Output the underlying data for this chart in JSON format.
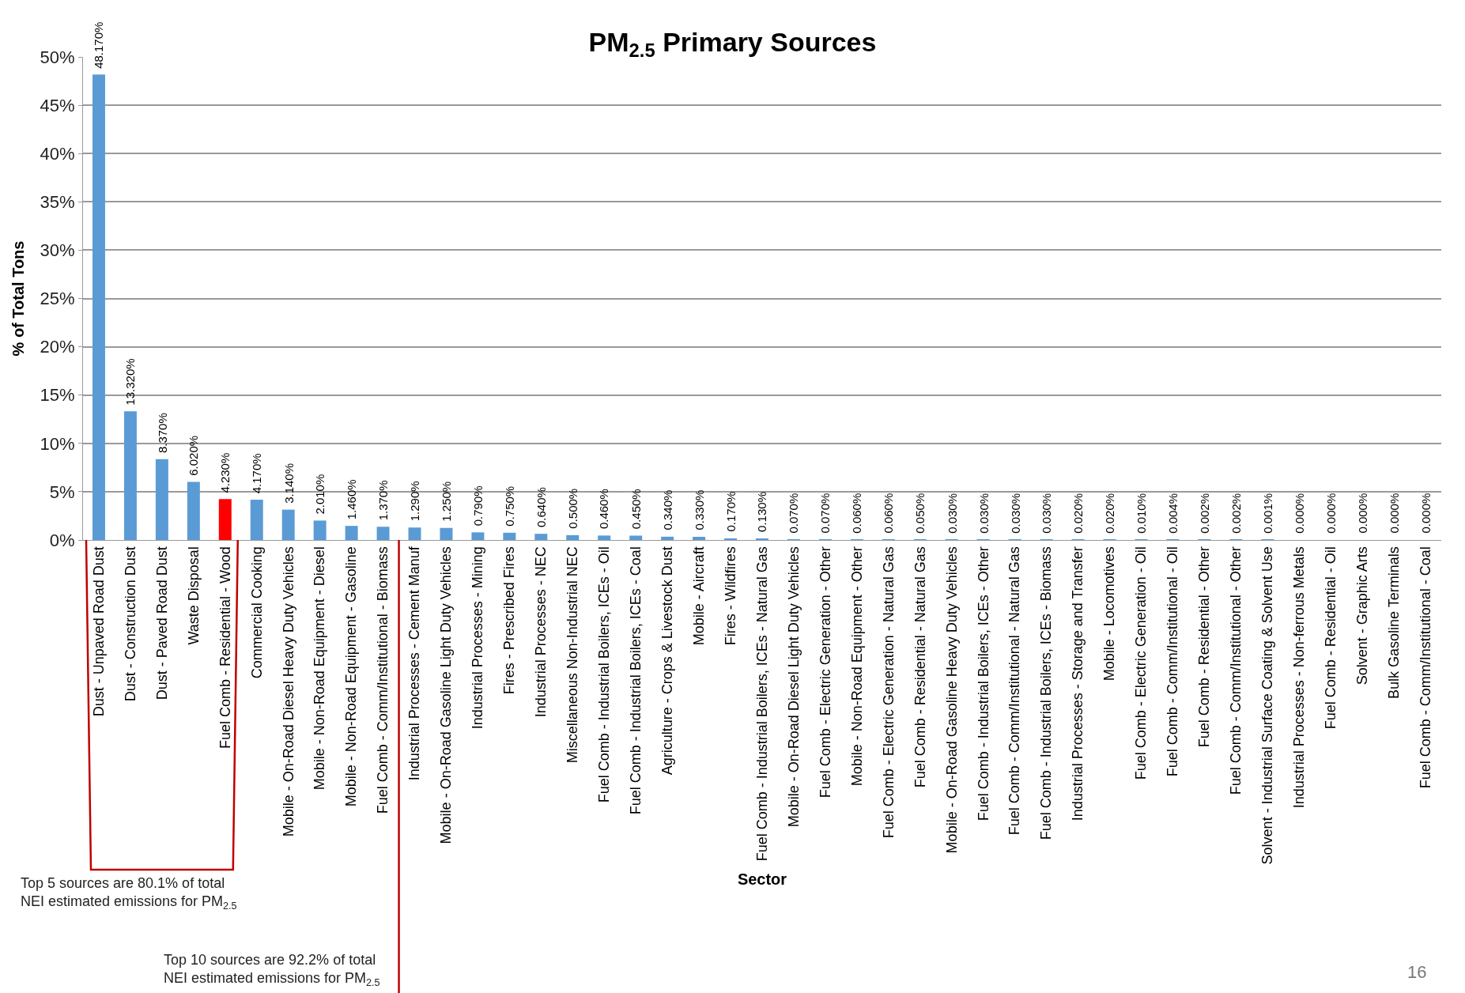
{
  "chart_data": {
    "type": "bar",
    "title": "PM$_{2.5}$ Primary Sources",
    "xlabel": "Sector",
    "ylabel": "% of Total Tons",
    "categories": [
      "Dust - Unpaved Road Dust",
      "Dust - Construction Dust",
      "Dust - Paved Road Dust",
      "Waste Disposal",
      "Fuel Comb - Residential - Wood",
      "Commercial Cooking",
      "Mobile - On-Road Diesel Heavy Duty Vehicles",
      "Mobile - Non-Road Equipment - Diesel",
      "Mobile - Non-Road Equipment - Gasoline",
      "Fuel Comb - Comm/Institutional - Biomass",
      "Industrial Processes - Cement Manuf",
      "Mobile - On-Road Gasoline Light Duty Vehicles",
      "Industrial Processes - Mining",
      "Fires - Prescribed Fires",
      "Industrial Processes - NEC",
      "Miscellaneous Non-Industrial NEC",
      "Fuel Comb - Industrial Boilers, ICEs - Oil",
      "Fuel Comb - Industrial Boilers, ICEs - Coal",
      "Agriculture - Crops & Livestock Dust",
      "Mobile - Aircraft",
      "Fires - Wildfires",
      "Fuel Comb - Industrial Boilers, ICEs - Natural Gas",
      "Mobile - On-Road Diesel Light Duty Vehicles",
      "Fuel Comb - Electric Generation - Other",
      "Mobile - Non-Road Equipment - Other",
      "Fuel Comb - Electric Generation - Natural Gas",
      "Fuel Comb - Residential - Natural Gas",
      "Mobile - On-Road Gasoline Heavy Duty Vehicles",
      "Fuel Comb - Industrial Boilers, ICEs - Other",
      "Fuel Comb - Comm/Institutional - Natural Gas",
      "Fuel Comb - Industrial Boilers, ICEs - Biomass",
      "Industrial Processes - Storage and Transfer",
      "Mobile - Locomotives",
      "Fuel Comb - Electric Generation - Oil",
      "Fuel Comb - Comm/Institutional - Oil",
      "Fuel Comb - Residential - Other",
      "Fuel Comb - Comm/Institutional - Other",
      "Solvent - Industrial Surface Coating & Solvent Use",
      "Industrial Processes - Non-ferrous Metals",
      "Fuel Comb - Residential - Oil",
      "Solvent - Graphic Arts",
      "Bulk Gasoline Terminals",
      "Fuel Comb - Comm/Institutional - Coal"
    ],
    "values": [
      48.17,
      13.32,
      8.37,
      6.02,
      4.23,
      4.17,
      3.14,
      2.01,
      1.46,
      1.37,
      1.29,
      1.25,
      0.79,
      0.75,
      0.64,
      0.5,
      0.46,
      0.45,
      0.34,
      0.33,
      0.17,
      0.13,
      0.07,
      0.07,
      0.06,
      0.06,
      0.05,
      0.03,
      0.03,
      0.03,
      0.03,
      0.02,
      0.02,
      0.01,
      0.004,
      0.002,
      0.002,
      0.001,
      0.0,
      0.0,
      0.0,
      0.0,
      0.0
    ],
    "value_labels": [
      "48.170%",
      "13.320%",
      "8.370%",
      "6.020%",
      "4.230%",
      "4.170%",
      "3.140%",
      "2.010%",
      "1.460%",
      "1.370%",
      "1.290%",
      "1.250%",
      "0.790%",
      "0.750%",
      "0.640%",
      "0.500%",
      "0.460%",
      "0.450%",
      "0.340%",
      "0.330%",
      "0.170%",
      "0.130%",
      "0.070%",
      "0.070%",
      "0.060%",
      "0.060%",
      "0.050%",
      "0.030%",
      "0.030%",
      "0.030%",
      "0.030%",
      "0.020%",
      "0.020%",
      "0.010%",
      "0.004%",
      "0.002%",
      "0.002%",
      "0.001%",
      "0.000%",
      "0.000%",
      "0.000%",
      "0.000%",
      "0.000%"
    ],
    "colors": [
      "#5b9bd5",
      "#5b9bd5",
      "#5b9bd5",
      "#5b9bd5",
      "#ff0000",
      "#5b9bd5",
      "#5b9bd5",
      "#5b9bd5",
      "#5b9bd5",
      "#5b9bd5",
      "#5b9bd5",
      "#5b9bd5",
      "#5b9bd5",
      "#5b9bd5",
      "#5b9bd5",
      "#5b9bd5",
      "#5b9bd5",
      "#5b9bd5",
      "#5b9bd5",
      "#5b9bd5",
      "#5b9bd5",
      "#5b9bd5",
      "#5b9bd5",
      "#5b9bd5",
      "#5b9bd5",
      "#5b9bd5",
      "#5b9bd5",
      "#5b9bd5",
      "#5b9bd5",
      "#5b9bd5",
      "#5b9bd5",
      "#5b9bd5",
      "#5b9bd5",
      "#5b9bd5",
      "#5b9bd5",
      "#5b9bd5",
      "#5b9bd5",
      "#5b9bd5",
      "#5b9bd5",
      "#5b9bd5",
      "#5b9bd5",
      "#5b9bd5",
      "#5b9bd5"
    ],
    "ylim": [
      0,
      50
    ],
    "yticks": [
      {
        "value": 0,
        "label": "0%"
      },
      {
        "value": 5,
        "label": "5%"
      },
      {
        "value": 10,
        "label": "10%"
      },
      {
        "value": 15,
        "label": "15%"
      },
      {
        "value": 20,
        "label": "20%"
      },
      {
        "value": 25,
        "label": "25%"
      },
      {
        "value": 30,
        "label": "30%"
      },
      {
        "value": 35,
        "label": "35%"
      },
      {
        "value": 40,
        "label": "40%"
      },
      {
        "value": 45,
        "label": "45%"
      },
      {
        "value": 50,
        "label": "50%"
      }
    ],
    "grid": "y",
    "annotations": [
      "Top 5 sources are 80.1% of total NEI estimated emissions for PM$_{2.5}$",
      "Top 10 sources are 92.2% of total NEI estimated emissions for PM$_{2.5}$",
      "16"
    ]
  }
}
